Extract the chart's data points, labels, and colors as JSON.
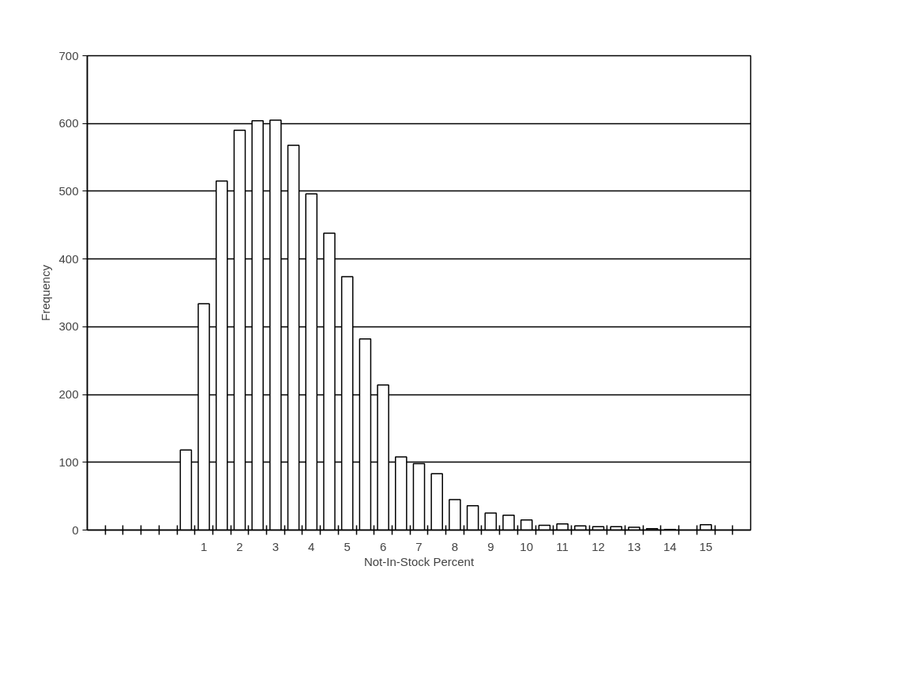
{
  "chart_data": {
    "type": "bar",
    "xlabel": "Not-In-Stock Percent",
    "ylabel": "Frequency",
    "x": [
      0.5,
      1,
      1.5,
      2,
      2.5,
      3,
      3.5,
      4,
      4.5,
      5,
      5.5,
      6,
      6.5,
      7,
      7.5,
      8,
      8.5,
      9,
      9.5,
      10,
      10.5,
      11,
      11.5,
      12,
      12.5,
      13,
      13.5,
      14,
      14.5,
      15
    ],
    "values": [
      118,
      334,
      515,
      590,
      604,
      605,
      568,
      496,
      438,
      374,
      282,
      214,
      108,
      98,
      83,
      45,
      36,
      25,
      22,
      15,
      7,
      9,
      6,
      5,
      5,
      4,
      2,
      1,
      null,
      8
    ],
    "color": "#ffffff",
    "xlim": [
      -2.25,
      16.25
    ],
    "xticks": [
      {
        "value": -1.75,
        "label": null
      },
      {
        "value": -1.25,
        "label": null
      },
      {
        "value": -0.75,
        "label": null
      },
      {
        "value": -0.25,
        "label": null
      },
      {
        "value": 0.25,
        "label": null
      },
      {
        "value": 0.75,
        "label": null
      },
      1,
      {
        "value": 1.25,
        "label": null
      },
      {
        "value": 1.75,
        "label": null
      },
      2,
      {
        "value": 2.25,
        "label": null
      },
      {
        "value": 2.75,
        "label": null
      },
      3,
      {
        "value": 3.25,
        "label": null
      },
      {
        "value": 3.75,
        "label": null
      },
      4,
      {
        "value": 4.25,
        "label": null
      },
      {
        "value": 4.75,
        "label": null
      },
      5,
      {
        "value": 5.25,
        "label": null
      },
      {
        "value": 5.75,
        "label": null
      },
      6,
      {
        "value": 6.25,
        "label": null
      },
      {
        "value": 6.75,
        "label": null
      },
      7,
      {
        "value": 7.25,
        "label": null
      },
      {
        "value": 7.75,
        "label": null
      },
      8,
      {
        "value": 8.25,
        "label": null
      },
      {
        "value": 8.75,
        "label": null
      },
      9,
      {
        "value": 9.25,
        "label": null
      },
      {
        "value": 9.75,
        "label": null
      },
      10,
      {
        "value": 10.25,
        "label": null
      },
      {
        "value": 10.75,
        "label": null
      },
      11,
      {
        "value": 11.25,
        "label": null
      },
      {
        "value": 11.75,
        "label": null
      },
      12,
      {
        "value": 12.25,
        "label": null
      },
      {
        "value": 12.75,
        "label": null
      },
      13,
      {
        "value": 13.25,
        "label": null
      },
      {
        "value": 13.75,
        "label": null
      },
      14,
      {
        "value": 14.25,
        "label": null
      },
      {
        "value": 14.75,
        "label": null
      },
      15,
      {
        "value": 15.25,
        "label": null
      },
      {
        "value": 15.75,
        "label": null
      }
    ],
    "ylim": [
      0,
      700
    ],
    "yticks": [
      0,
      100,
      200,
      300,
      400,
      500,
      600,
      700
    ],
    "grid": "y"
  }
}
